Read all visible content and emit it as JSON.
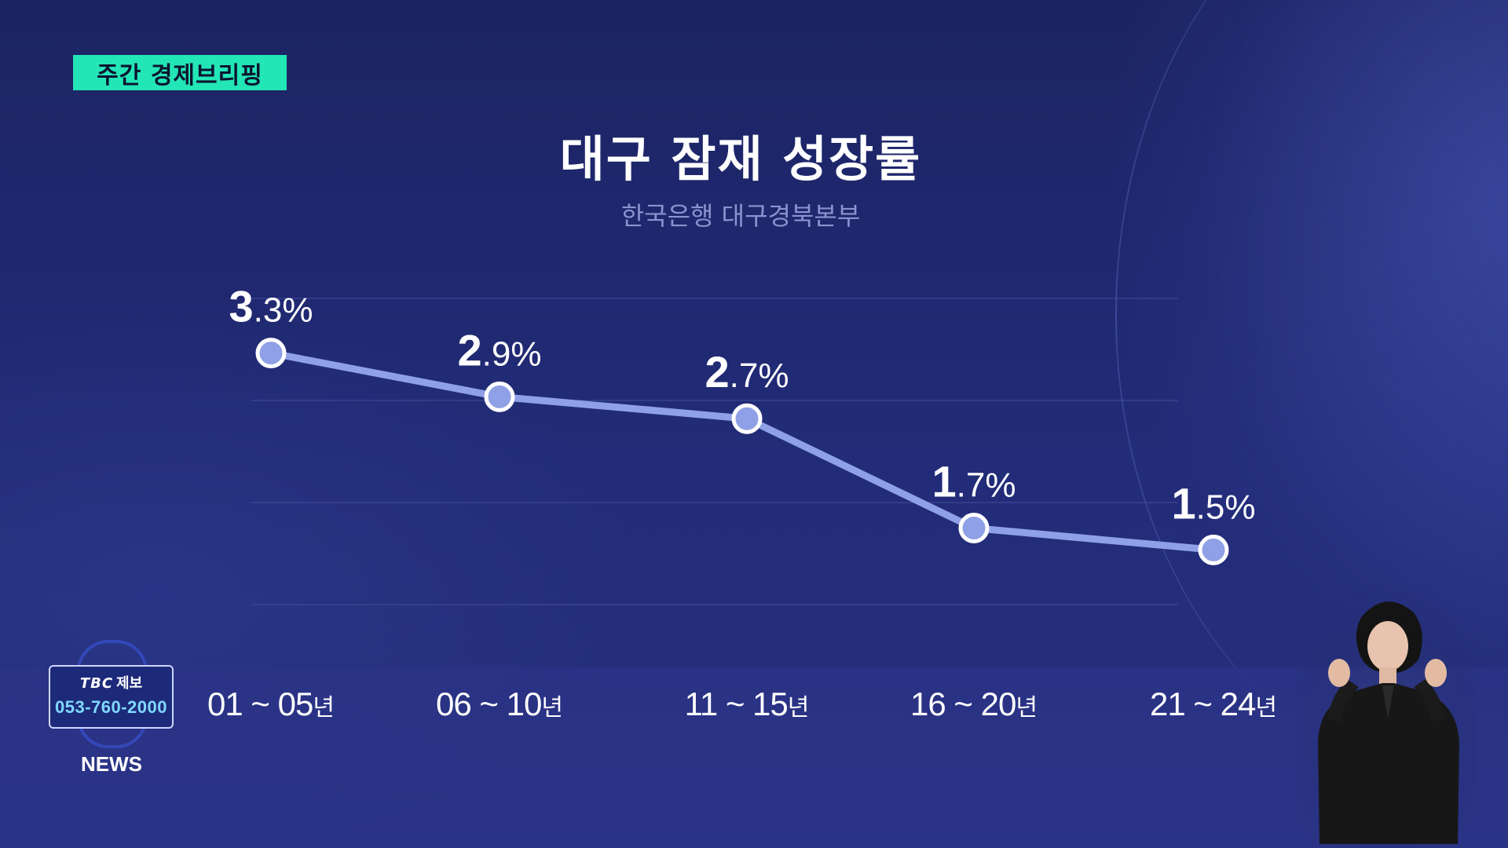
{
  "badge": {
    "label": "주간 경제브리핑"
  },
  "chart_data": {
    "type": "line",
    "title": "대구 잠재 성장률",
    "subtitle": "한국은행 대구경북본부",
    "categories": [
      "01",
      "06",
      "11",
      "16",
      "21"
    ],
    "category_labels": [
      {
        "range": "01 ~ 05",
        "unit": "년"
      },
      {
        "range": "06 ~ 10",
        "unit": "년"
      },
      {
        "range": "11 ~ 15",
        "unit": "년"
      },
      {
        "range": "16 ~ 20",
        "unit": "년"
      },
      {
        "range": "21 ~ 24",
        "unit": "년"
      }
    ],
    "series": [
      {
        "values": [
          3.3,
          2.9,
          2.7,
          1.7,
          1.5
        ]
      }
    ],
    "data_labels": [
      {
        "int": "3",
        "dec": ".3%"
      },
      {
        "int": "2",
        "dec": ".9%"
      },
      {
        "int": "2",
        "dec": ".7%"
      },
      {
        "int": "1",
        "dec": ".7%"
      },
      {
        "int": "1",
        "dec": ".5%"
      }
    ],
    "ylim": [
      1.0,
      3.8
    ],
    "grid": true,
    "colors": {
      "line": "#8fa0e6",
      "marker_fill": "#8fa0e6",
      "marker_stroke": "#ffffff",
      "label": "#ffffff"
    }
  },
  "tip": {
    "brand": "TBC",
    "label": "제보",
    "phone": "053-760-2000"
  },
  "network_label": "NEWS",
  "icons": {
    "signer": "sign-language-interpreter"
  }
}
